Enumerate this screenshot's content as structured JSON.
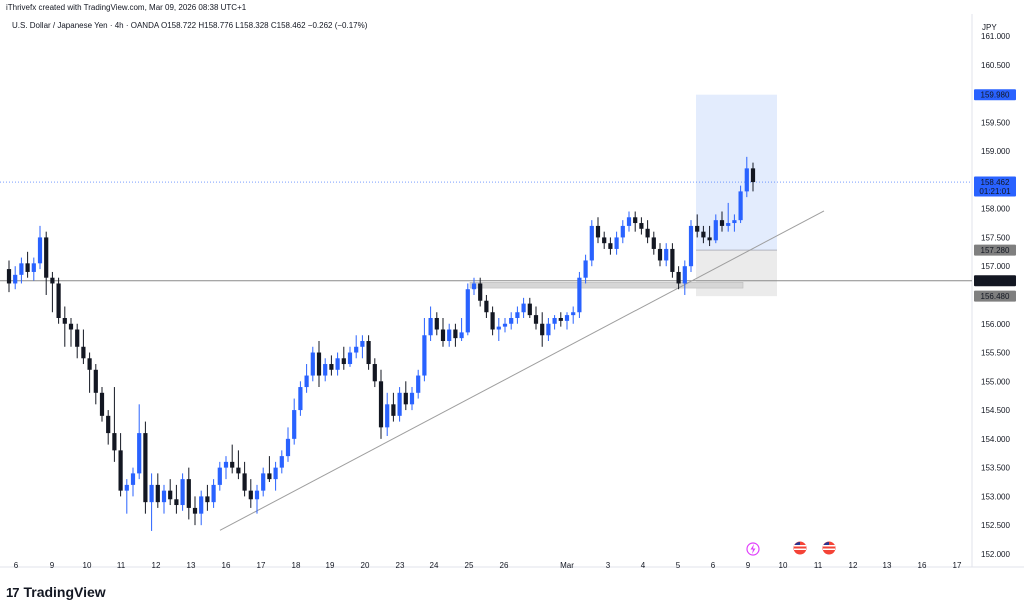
{
  "header": {
    "attribution": "iThrivefx created with TradingView.com, Mar 09, 2026 08:38 UTC+1",
    "symbol": "U.S. Dollar / Japanese Yen · 4h · OANDA",
    "ohlc": "O158.722 H158.776 L158.328 C158.462 −0.262 (−0.17%)"
  },
  "brand": {
    "logo_mark": "17",
    "name": "TradingView"
  },
  "colors": {
    "up": "#2962ff",
    "down": "#131722",
    "price_label": "#2962ff",
    "target_zone": "#e3ecfd",
    "stop_zone": "#ebebeb",
    "level_label": "#7f7f7f",
    "grid_line": "#c8c8c8"
  },
  "icons": [
    "lightning-icon",
    "us-flag-icon",
    "us-flag-icon"
  ],
  "chart_data": {
    "type": "candlestick",
    "currency": "JPY",
    "ylim": [
      151.85,
      161.1
    ],
    "y_ticks": [
      "161.000",
      "160.500",
      "160.000",
      "159.500",
      "159.000",
      "158.500",
      "158.000",
      "157.500",
      "157.000",
      "156.500",
      "156.000",
      "155.500",
      "155.000",
      "154.500",
      "154.000",
      "153.500",
      "153.000",
      "152.500",
      "152.000"
    ],
    "x_ticks": [
      "6",
      "9",
      "10",
      "11",
      "12",
      "13",
      "16",
      "17",
      "18",
      "19",
      "20",
      "23",
      "24",
      "25",
      "26",
      "Mar",
      "3",
      "4",
      "5",
      "6",
      "9",
      "10",
      "11",
      "12",
      "13",
      "16",
      "17"
    ],
    "price_labels": [
      {
        "value": "159.980",
        "style": "blue"
      },
      {
        "value": "158.462",
        "sub": "01:21:01",
        "style": "blue"
      },
      {
        "value": "157.280",
        "style": "grey"
      },
      {
        "value": "156.747",
        "style": "black"
      },
      {
        "value": "156.480",
        "style": "grey"
      }
    ],
    "levels": {
      "horizontal": 156.747,
      "current": 158.462
    },
    "trendline": [
      {
        "date": "Feb 15",
        "price": 152.41
      },
      {
        "date": "Mar 12",
        "price": 157.96
      }
    ],
    "position": {
      "entry": 157.28,
      "target": 159.98,
      "stop": 156.48,
      "start": "Mar 5",
      "end": "Mar 10"
    },
    "support_zone": {
      "from": 156.62,
      "to": 156.72,
      "start": "Feb 25",
      "end": "Mar 9"
    },
    "candles": [
      {
        "o": 156.95,
        "h": 157.1,
        "l": 156.55,
        "c": 156.7
      },
      {
        "o": 156.7,
        "h": 157.0,
        "l": 156.6,
        "c": 156.85
      },
      {
        "o": 156.85,
        "h": 157.15,
        "l": 156.7,
        "c": 157.05
      },
      {
        "o": 157.05,
        "h": 157.25,
        "l": 156.8,
        "c": 156.9
      },
      {
        "o": 156.9,
        "h": 157.15,
        "l": 156.75,
        "c": 157.05
      },
      {
        "o": 157.05,
        "h": 157.7,
        "l": 156.95,
        "c": 157.5
      },
      {
        "o": 157.5,
        "h": 157.6,
        "l": 156.5,
        "c": 156.8
      },
      {
        "o": 156.8,
        "h": 156.9,
        "l": 156.2,
        "c": 156.7
      },
      {
        "o": 156.7,
        "h": 156.8,
        "l": 156.0,
        "c": 156.1
      },
      {
        "o": 156.1,
        "h": 156.3,
        "l": 155.6,
        "c": 156.0
      },
      {
        "o": 156.0,
        "h": 156.1,
        "l": 155.6,
        "c": 155.9
      },
      {
        "o": 155.9,
        "h": 156.0,
        "l": 155.4,
        "c": 155.6
      },
      {
        "o": 155.6,
        "h": 155.9,
        "l": 155.3,
        "c": 155.4
      },
      {
        "o": 155.4,
        "h": 155.5,
        "l": 154.8,
        "c": 155.2
      },
      {
        "o": 155.2,
        "h": 155.3,
        "l": 154.6,
        "c": 154.8
      },
      {
        "o": 154.8,
        "h": 154.9,
        "l": 154.3,
        "c": 154.4
      },
      {
        "o": 154.4,
        "h": 154.5,
        "l": 153.9,
        "c": 154.1
      },
      {
        "o": 154.1,
        "h": 154.9,
        "l": 153.6,
        "c": 153.8
      },
      {
        "o": 153.8,
        "h": 154.1,
        "l": 153.0,
        "c": 153.1
      },
      {
        "o": 153.1,
        "h": 153.3,
        "l": 152.7,
        "c": 153.2
      },
      {
        "o": 153.2,
        "h": 153.5,
        "l": 153.0,
        "c": 153.4
      },
      {
        "o": 153.4,
        "h": 154.6,
        "l": 153.3,
        "c": 154.1
      },
      {
        "o": 154.1,
        "h": 154.3,
        "l": 152.7,
        "c": 152.9
      },
      {
        "o": 152.9,
        "h": 153.4,
        "l": 152.4,
        "c": 153.2
      },
      {
        "o": 153.2,
        "h": 153.4,
        "l": 152.8,
        "c": 152.9
      },
      {
        "o": 152.9,
        "h": 153.2,
        "l": 152.7,
        "c": 153.1
      },
      {
        "o": 153.1,
        "h": 153.3,
        "l": 152.85,
        "c": 152.95
      },
      {
        "o": 152.95,
        "h": 153.2,
        "l": 152.7,
        "c": 152.85
      },
      {
        "o": 152.85,
        "h": 153.4,
        "l": 152.75,
        "c": 153.3
      },
      {
        "o": 153.3,
        "h": 153.5,
        "l": 152.6,
        "c": 152.8
      },
      {
        "o": 152.8,
        "h": 153.0,
        "l": 152.5,
        "c": 152.7
      },
      {
        "o": 152.7,
        "h": 153.1,
        "l": 152.5,
        "c": 153.0
      },
      {
        "o": 153.0,
        "h": 153.2,
        "l": 152.75,
        "c": 152.9
      },
      {
        "o": 152.9,
        "h": 153.3,
        "l": 152.8,
        "c": 153.2
      },
      {
        "o": 153.2,
        "h": 153.6,
        "l": 153.1,
        "c": 153.5
      },
      {
        "o": 153.5,
        "h": 153.7,
        "l": 153.3,
        "c": 153.6
      },
      {
        "o": 153.6,
        "h": 153.9,
        "l": 153.4,
        "c": 153.5
      },
      {
        "o": 153.5,
        "h": 153.8,
        "l": 153.3,
        "c": 153.4
      },
      {
        "o": 153.4,
        "h": 153.6,
        "l": 153.0,
        "c": 153.1
      },
      {
        "o": 153.1,
        "h": 153.3,
        "l": 152.8,
        "c": 152.95
      },
      {
        "o": 152.95,
        "h": 153.2,
        "l": 152.7,
        "c": 153.1
      },
      {
        "o": 153.1,
        "h": 153.5,
        "l": 153.0,
        "c": 153.4
      },
      {
        "o": 153.4,
        "h": 153.7,
        "l": 153.25,
        "c": 153.3
      },
      {
        "o": 153.3,
        "h": 153.6,
        "l": 153.1,
        "c": 153.5
      },
      {
        "o": 153.5,
        "h": 153.8,
        "l": 153.4,
        "c": 153.7
      },
      {
        "o": 153.7,
        "h": 154.2,
        "l": 153.6,
        "c": 154.0
      },
      {
        "o": 154.0,
        "h": 154.7,
        "l": 153.9,
        "c": 154.5
      },
      {
        "o": 154.5,
        "h": 155.0,
        "l": 154.4,
        "c": 154.9
      },
      {
        "o": 154.9,
        "h": 155.3,
        "l": 154.8,
        "c": 155.1
      },
      {
        "o": 155.1,
        "h": 155.6,
        "l": 155.0,
        "c": 155.5
      },
      {
        "o": 155.5,
        "h": 155.7,
        "l": 154.9,
        "c": 155.1
      },
      {
        "o": 155.1,
        "h": 155.4,
        "l": 155.0,
        "c": 155.3
      },
      {
        "o": 155.3,
        "h": 155.45,
        "l": 155.1,
        "c": 155.2
      },
      {
        "o": 155.2,
        "h": 155.5,
        "l": 155.1,
        "c": 155.4
      },
      {
        "o": 155.4,
        "h": 155.6,
        "l": 155.2,
        "c": 155.3
      },
      {
        "o": 155.3,
        "h": 155.6,
        "l": 155.25,
        "c": 155.5
      },
      {
        "o": 155.5,
        "h": 155.8,
        "l": 155.4,
        "c": 155.6
      },
      {
        "o": 155.6,
        "h": 155.8,
        "l": 155.4,
        "c": 155.7
      },
      {
        "o": 155.7,
        "h": 155.8,
        "l": 155.2,
        "c": 155.3
      },
      {
        "o": 155.3,
        "h": 155.4,
        "l": 154.9,
        "c": 155.0
      },
      {
        "o": 155.0,
        "h": 155.2,
        "l": 154.0,
        "c": 154.2
      },
      {
        "o": 154.2,
        "h": 154.8,
        "l": 154.05,
        "c": 154.6
      },
      {
        "o": 154.6,
        "h": 154.8,
        "l": 154.3,
        "c": 154.4
      },
      {
        "o": 154.4,
        "h": 154.9,
        "l": 154.3,
        "c": 154.8
      },
      {
        "o": 154.8,
        "h": 155.0,
        "l": 154.5,
        "c": 154.6
      },
      {
        "o": 154.6,
        "h": 154.9,
        "l": 154.5,
        "c": 154.8
      },
      {
        "o": 154.8,
        "h": 155.2,
        "l": 154.7,
        "c": 155.1
      },
      {
        "o": 155.1,
        "h": 156.1,
        "l": 155.0,
        "c": 155.8
      },
      {
        "o": 155.8,
        "h": 156.3,
        "l": 155.7,
        "c": 156.1
      },
      {
        "o": 156.1,
        "h": 156.2,
        "l": 155.8,
        "c": 155.9
      },
      {
        "o": 155.9,
        "h": 156.1,
        "l": 155.6,
        "c": 155.7
      },
      {
        "o": 155.7,
        "h": 156.0,
        "l": 155.6,
        "c": 155.9
      },
      {
        "o": 155.9,
        "h": 156.0,
        "l": 155.6,
        "c": 155.75
      },
      {
        "o": 155.75,
        "h": 156.1,
        "l": 155.7,
        "c": 155.85
      },
      {
        "o": 155.85,
        "h": 156.7,
        "l": 155.8,
        "c": 156.6
      },
      {
        "o": 156.6,
        "h": 156.8,
        "l": 156.5,
        "c": 156.7
      },
      {
        "o": 156.7,
        "h": 156.8,
        "l": 156.3,
        "c": 156.4
      },
      {
        "o": 156.4,
        "h": 156.5,
        "l": 156.1,
        "c": 156.2
      },
      {
        "o": 156.2,
        "h": 156.3,
        "l": 155.8,
        "c": 155.9
      },
      {
        "o": 155.9,
        "h": 156.1,
        "l": 155.7,
        "c": 155.95
      },
      {
        "o": 155.95,
        "h": 156.1,
        "l": 155.85,
        "c": 156.0
      },
      {
        "o": 156.0,
        "h": 156.2,
        "l": 155.9,
        "c": 156.1
      },
      {
        "o": 156.1,
        "h": 156.3,
        "l": 156.0,
        "c": 156.2
      },
      {
        "o": 156.2,
        "h": 156.45,
        "l": 156.1,
        "c": 156.35
      },
      {
        "o": 156.35,
        "h": 156.45,
        "l": 156.1,
        "c": 156.15
      },
      {
        "o": 156.15,
        "h": 156.3,
        "l": 155.9,
        "c": 156.0
      },
      {
        "o": 156.0,
        "h": 156.2,
        "l": 155.6,
        "c": 155.8
      },
      {
        "o": 155.8,
        "h": 156.1,
        "l": 155.7,
        "c": 156.0
      },
      {
        "o": 156.0,
        "h": 156.15,
        "l": 155.9,
        "c": 156.1
      },
      {
        "o": 156.1,
        "h": 156.2,
        "l": 155.95,
        "c": 156.05
      },
      {
        "o": 156.05,
        "h": 156.2,
        "l": 155.9,
        "c": 156.15
      },
      {
        "o": 156.15,
        "h": 156.3,
        "l": 156.0,
        "c": 156.2
      },
      {
        "o": 156.2,
        "h": 156.9,
        "l": 156.1,
        "c": 156.8
      },
      {
        "o": 156.8,
        "h": 157.2,
        "l": 156.7,
        "c": 157.1
      },
      {
        "o": 157.1,
        "h": 157.8,
        "l": 157.0,
        "c": 157.7
      },
      {
        "o": 157.7,
        "h": 157.85,
        "l": 157.4,
        "c": 157.5
      },
      {
        "o": 157.5,
        "h": 157.6,
        "l": 157.3,
        "c": 157.4
      },
      {
        "o": 157.4,
        "h": 157.5,
        "l": 157.2,
        "c": 157.3
      },
      {
        "o": 157.3,
        "h": 157.6,
        "l": 157.2,
        "c": 157.5
      },
      {
        "o": 157.5,
        "h": 157.8,
        "l": 157.4,
        "c": 157.7
      },
      {
        "o": 157.7,
        "h": 157.95,
        "l": 157.6,
        "c": 157.85
      },
      {
        "o": 157.85,
        "h": 157.95,
        "l": 157.6,
        "c": 157.75
      },
      {
        "o": 157.75,
        "h": 157.85,
        "l": 157.55,
        "c": 157.65
      },
      {
        "o": 157.65,
        "h": 157.8,
        "l": 157.4,
        "c": 157.5
      },
      {
        "o": 157.5,
        "h": 157.6,
        "l": 157.2,
        "c": 157.3
      },
      {
        "o": 157.3,
        "h": 157.4,
        "l": 157.0,
        "c": 157.1
      },
      {
        "o": 157.1,
        "h": 157.4,
        "l": 157.0,
        "c": 157.3
      },
      {
        "o": 157.3,
        "h": 157.4,
        "l": 156.8,
        "c": 156.9
      },
      {
        "o": 156.9,
        "h": 157.0,
        "l": 156.6,
        "c": 156.7
      },
      {
        "o": 156.7,
        "h": 157.1,
        "l": 156.5,
        "c": 157.0
      },
      {
        "o": 157.0,
        "h": 157.8,
        "l": 156.9,
        "c": 157.7
      },
      {
        "o": 157.7,
        "h": 157.9,
        "l": 157.5,
        "c": 157.6
      },
      {
        "o": 157.6,
        "h": 157.7,
        "l": 157.4,
        "c": 157.5
      },
      {
        "o": 157.5,
        "h": 157.7,
        "l": 157.35,
        "c": 157.45
      },
      {
        "o": 157.45,
        "h": 157.9,
        "l": 157.4,
        "c": 157.8
      },
      {
        "o": 157.8,
        "h": 157.95,
        "l": 157.6,
        "c": 157.7
      },
      {
        "o": 157.7,
        "h": 158.1,
        "l": 157.6,
        "c": 157.75
      },
      {
        "o": 157.75,
        "h": 157.9,
        "l": 157.6,
        "c": 157.8
      },
      {
        "o": 157.8,
        "h": 158.4,
        "l": 157.75,
        "c": 158.3
      },
      {
        "o": 158.3,
        "h": 158.9,
        "l": 158.2,
        "c": 158.7
      },
      {
        "o": 158.7,
        "h": 158.8,
        "l": 158.3,
        "c": 158.462
      }
    ]
  }
}
